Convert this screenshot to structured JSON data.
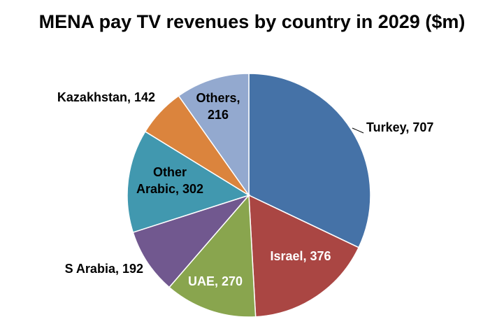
{
  "chart_data": {
    "type": "pie",
    "title": "MENA pay TV revenues by country in 2029 ($m)",
    "slices": [
      {
        "label": "Turkey",
        "value": 707,
        "text": "Turkey, 707",
        "color": "#4572A7",
        "label_color": "#000000"
      },
      {
        "label": "Israel",
        "value": 376,
        "text": "Israel, 376",
        "color": "#AA4643",
        "label_color": "#ffffff"
      },
      {
        "label": "UAE",
        "value": 270,
        "text": "UAE, 270",
        "color": "#89A54E",
        "label_color": "#ffffff"
      },
      {
        "label": "S Arabia",
        "value": 192,
        "text": "S Arabia, 192",
        "color": "#71588F",
        "label_color": "#000000"
      },
      {
        "label": "Other Arabic",
        "value": 302,
        "text": "Other Arabic, 302",
        "color": "#4198AF",
        "label_color": "#000000"
      },
      {
        "label": "Kazakhstan",
        "value": 142,
        "text": "Kazakhstan, 142",
        "color": "#DB843D",
        "label_color": "#000000"
      },
      {
        "label": "Others",
        "value": 216,
        "text": "Others, 216",
        "color": "#93A9CF",
        "label_color": "#000000"
      }
    ]
  }
}
